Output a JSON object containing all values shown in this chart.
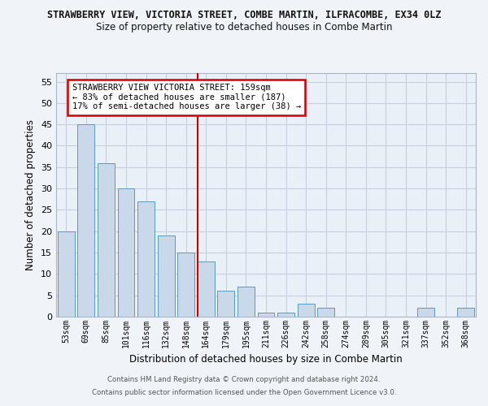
{
  "title": "STRAWBERRY VIEW, VICTORIA STREET, COMBE MARTIN, ILFRACOMBE, EX34 0LZ",
  "subtitle": "Size of property relative to detached houses in Combe Martin",
  "xlabel": "Distribution of detached houses by size in Combe Martin",
  "ylabel": "Number of detached properties",
  "bins": [
    "53sqm",
    "69sqm",
    "85sqm",
    "101sqm",
    "116sqm",
    "132sqm",
    "148sqm",
    "164sqm",
    "179sqm",
    "195sqm",
    "211sqm",
    "226sqm",
    "242sqm",
    "258sqm",
    "274sqm",
    "289sqm",
    "305sqm",
    "321sqm",
    "337sqm",
    "352sqm",
    "368sqm"
  ],
  "values": [
    20,
    45,
    36,
    30,
    27,
    19,
    15,
    13,
    6,
    7,
    1,
    1,
    3,
    2,
    0,
    0,
    0,
    0,
    2,
    0,
    2
  ],
  "bar_color": "#c9d9ea",
  "bar_edge_color": "#5b9abd",
  "grid_color": "#c5cfe0",
  "bg_color": "#eaf0f8",
  "fig_color": "#f0f4f8",
  "red_line_index": 7,
  "annotation_text": "STRAWBERRY VIEW VICTORIA STREET: 159sqm\n← 83% of detached houses are smaller (187)\n17% of semi-detached houses are larger (38) →",
  "annotation_box_color": "#ffffff",
  "annotation_box_edge": "#cc0000",
  "ylim": [
    0,
    57
  ],
  "yticks": [
    0,
    5,
    10,
    15,
    20,
    25,
    30,
    35,
    40,
    45,
    50,
    55
  ],
  "footer1": "Contains HM Land Registry data © Crown copyright and database right 2024.",
  "footer2": "Contains public sector information licensed under the Open Government Licence v3.0."
}
